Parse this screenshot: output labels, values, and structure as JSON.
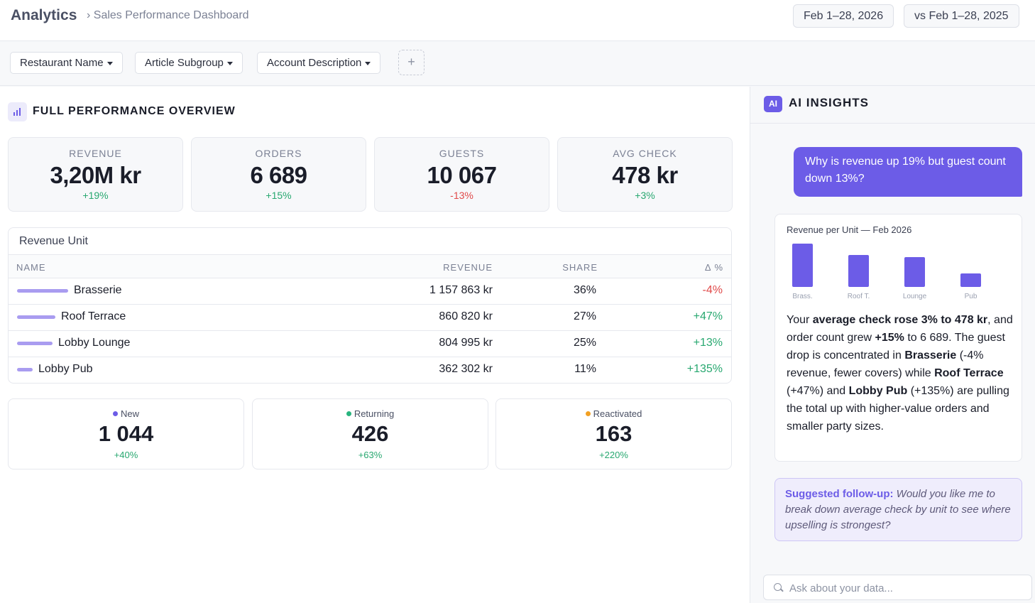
{
  "header": {
    "title": "Analytics",
    "breadcrumb": "› Sales Performance Dashboard",
    "date_range": "Feb 1–28, 2026",
    "compare_range": "vs Feb 1–28, 2025"
  },
  "filters": {
    "items": [
      "Restaurant Name",
      "Article Subgroup",
      "Account Description"
    ],
    "add_label": "+"
  },
  "overview": {
    "title": "FULL PERFORMANCE OVERVIEW",
    "kpis": [
      {
        "label": "REVENUE",
        "value": "3,20M kr",
        "change": "+19%",
        "trend": "up"
      },
      {
        "label": "ORDERS",
        "value": "6 689",
        "change": "+15%",
        "trend": "up"
      },
      {
        "label": "GUESTS",
        "value": "10 067",
        "change": "-13%",
        "trend": "down"
      },
      {
        "label": "AVG CHECK",
        "value": "478 kr",
        "change": "+3%",
        "trend": "up"
      }
    ]
  },
  "revenue_unit": {
    "title": "Revenue Unit",
    "columns": [
      "NAME",
      "REVENUE",
      "SHARE",
      "Δ %"
    ],
    "rows": [
      {
        "name": "Brasserie",
        "revenue": "1 157 863 kr",
        "share": "36%",
        "share_value": 36,
        "delta": "-4%",
        "trend": "down"
      },
      {
        "name": "Roof Terrace",
        "revenue": "860 820 kr",
        "share": "27%",
        "share_value": 27,
        "delta": "+47%",
        "trend": "up"
      },
      {
        "name": "Lobby Lounge",
        "revenue": "804 995 kr",
        "share": "25%",
        "share_value": 25,
        "delta": "+13%",
        "trend": "up"
      },
      {
        "name": "Lobby Pub",
        "revenue": "362 302 kr",
        "share": "11%",
        "share_value": 11,
        "delta": "+135%",
        "trend": "up"
      }
    ]
  },
  "customers": [
    {
      "label": "New",
      "value": "1 044",
      "change": "+40%",
      "dot_color": "#6c5ce7"
    },
    {
      "label": "Returning",
      "value": "426",
      "change": "+63%",
      "dot_color": "#28b47e"
    },
    {
      "label": "Reactivated",
      "value": "163",
      "change": "+220%",
      "dot_color": "#f2a023"
    }
  ],
  "ai": {
    "badge": "AI",
    "title": "AI INSIGHTS",
    "question": "Why is revenue up 19% but guest count down 13%?",
    "chart_title": "Revenue per Unit — Feb 2026",
    "answer": {
      "p1": "Your ",
      "b1": "average check rose 3% to 478 kr",
      "p2": ", and order count grew ",
      "b2": "+15%",
      "p3": " to 6 689. The guest drop is concentrated in ",
      "b3": "Brasserie",
      "p4": " (-4% revenue, fewer covers) while ",
      "b4": "Roof Terrace",
      "p5": " (+47%) and ",
      "b5": "Lobby Pub",
      "p6": " (+135%) are pulling the total up with higher-value orders and smaller party sizes."
    },
    "followup_label": "Suggested follow-up:",
    "followup_text": "Would you like me to break down average check by unit to see where upselling is strongest?",
    "ask_placeholder": "Ask about your data..."
  },
  "chart_data": {
    "type": "bar",
    "title": "Revenue per Unit — Feb 2026",
    "categories": [
      "Brass.",
      "Roof T.",
      "Lounge",
      "Pub"
    ],
    "values": [
      1157863,
      860820,
      804995,
      362302
    ],
    "color": "#6c5ce7"
  },
  "colors": {
    "accent": "#6c5ce7",
    "positive": "#28a870",
    "negative": "#e04a4a"
  }
}
